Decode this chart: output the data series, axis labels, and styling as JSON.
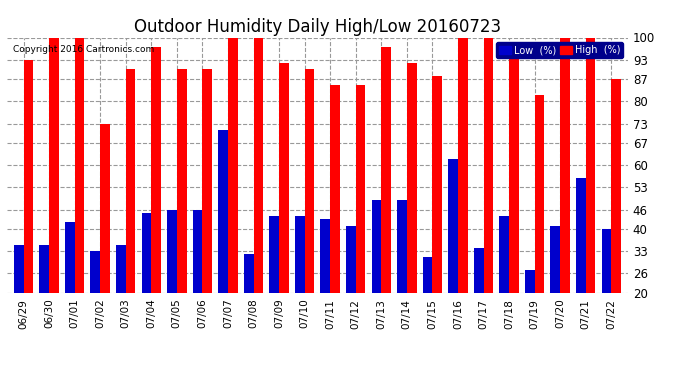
{
  "title": "Outdoor Humidity Daily High/Low 20160723",
  "copyright": "Copyright 2016 Cartronics.com",
  "dates": [
    "06/29",
    "06/30",
    "07/01",
    "07/02",
    "07/03",
    "07/04",
    "07/05",
    "07/06",
    "07/07",
    "07/08",
    "07/09",
    "07/10",
    "07/11",
    "07/12",
    "07/13",
    "07/14",
    "07/15",
    "07/16",
    "07/17",
    "07/18",
    "07/19",
    "07/20",
    "07/21",
    "07/22"
  ],
  "high_values": [
    93,
    100,
    100,
    73,
    90,
    97,
    90,
    90,
    100,
    100,
    92,
    90,
    85,
    85,
    97,
    92,
    88,
    100,
    100,
    97,
    82,
    100,
    100,
    87
  ],
  "low_values": [
    35,
    35,
    42,
    33,
    35,
    45,
    46,
    46,
    71,
    32,
    44,
    44,
    43,
    41,
    49,
    49,
    31,
    62,
    34,
    44,
    27,
    41,
    56,
    40
  ],
  "bar_width": 0.38,
  "ylim": [
    20,
    100
  ],
  "yticks": [
    20,
    26,
    33,
    40,
    46,
    53,
    60,
    67,
    73,
    80,
    87,
    93,
    100
  ],
  "high_color": "#ff0000",
  "low_color": "#0000cc",
  "bg_color": "#ffffff",
  "grid_color": "#999999",
  "title_fontsize": 12,
  "legend_low_label": "Low  (%)",
  "legend_high_label": "High  (%)"
}
